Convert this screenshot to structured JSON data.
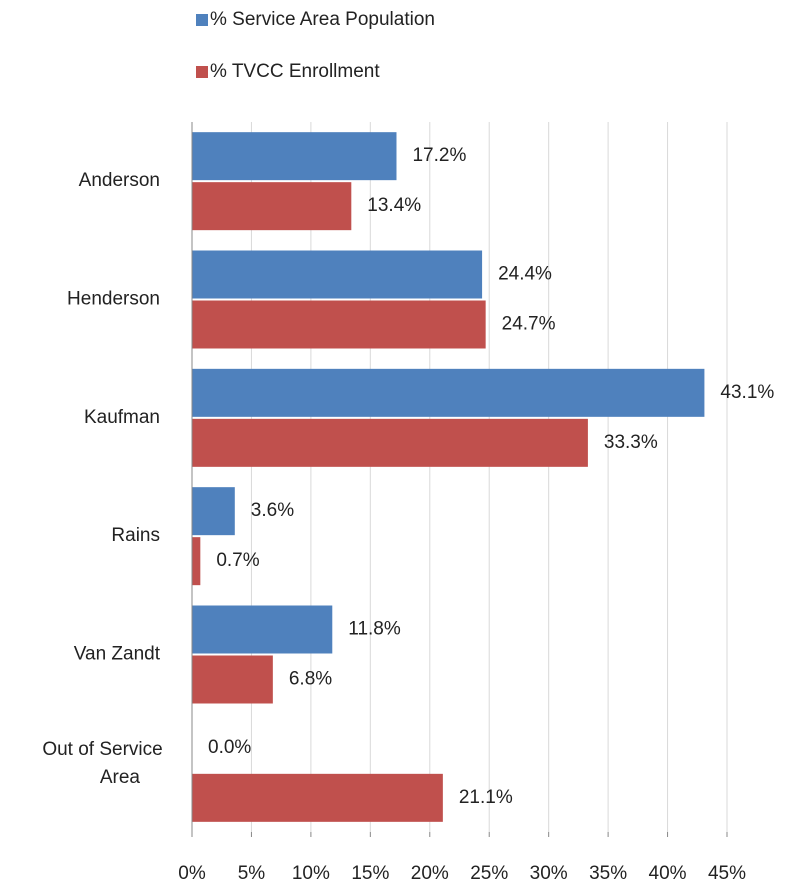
{
  "chart_data": {
    "type": "bar",
    "orientation": "horizontal",
    "categories": [
      "Anderson",
      "Henderson",
      "Kaufman",
      "Rains",
      "Van Zandt",
      "Out of Service Area"
    ],
    "series": [
      {
        "name": "% Service Area Population",
        "color": "#4f81bd",
        "values": [
          17.2,
          24.4,
          43.1,
          3.6,
          11.8,
          0.0
        ],
        "value_labels": [
          "17.2%",
          "24.4%",
          "43.1%",
          "3.6%",
          "11.8%",
          "0.0%"
        ]
      },
      {
        "name": "% TVCC Enrollment",
        "color": "#c0504d",
        "values": [
          13.4,
          24.7,
          33.3,
          0.7,
          6.8,
          21.1
        ],
        "value_labels": [
          "13.4%",
          "24.7%",
          "33.3%",
          "0.7%",
          "6.8%",
          "21.1%"
        ]
      }
    ],
    "xlim": [
      0,
      45
    ],
    "xticks": [
      {
        "value": 0,
        "label": "0%"
      },
      {
        "value": 5,
        "label": "5%"
      },
      {
        "value": 10,
        "label": "10%"
      },
      {
        "value": 15,
        "label": "15%"
      },
      {
        "value": 20,
        "label": "20%"
      },
      {
        "value": 25,
        "label": "25%"
      },
      {
        "value": 30,
        "label": "30%"
      },
      {
        "value": 35,
        "label": "35%"
      },
      {
        "value": 40,
        "label": "40%"
      },
      {
        "value": 45,
        "label": "45%"
      }
    ],
    "grid": true,
    "legend": "top"
  }
}
